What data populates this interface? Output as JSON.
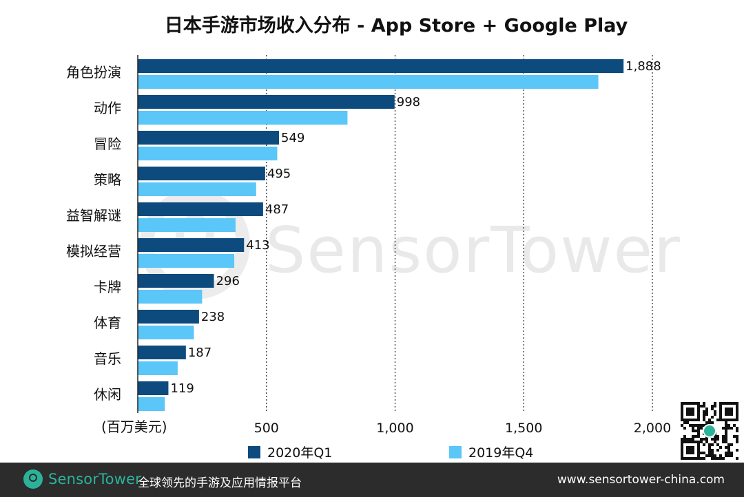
{
  "chart_data": {
    "type": "bar",
    "orientation": "horizontal",
    "title": "日本手游市场收入分布 - App Store + Google Play",
    "unit_label": "(百万美元)",
    "categories": [
      "角色扮演",
      "动作",
      "冒险",
      "策略",
      "益智解谜",
      "模拟经营",
      "卡牌",
      "体育",
      "音乐",
      "休闲"
    ],
    "series": [
      {
        "name": "2020年Q1",
        "color": "#0d4b7e",
        "values": [
          1888,
          998,
          549,
          495,
          487,
          413,
          296,
          238,
          187,
          119
        ],
        "labels": [
          "1,888",
          "998",
          "549",
          "495",
          "487",
          "413",
          "296",
          "238",
          "187",
          "119"
        ]
      },
      {
        "name": "2019年Q4",
        "color": "#5bc6f8",
        "values": [
          1790,
          815,
          542,
          460,
          380,
          375,
          250,
          218,
          155,
          105
        ]
      }
    ],
    "xlim": [
      0,
      2000
    ],
    "x_ticks": [
      500,
      1000,
      1500,
      2000
    ],
    "x_tick_labels": [
      "500",
      "1,000",
      "1,500",
      "2,000"
    ],
    "grid": "vertical-dotted",
    "legend_position": "bottom"
  },
  "watermark": "SensorTower",
  "footer": {
    "brand": "SensorTower",
    "tagline": "全球领先的手游及应用情报平台",
    "url": "www.sensortower-china.com"
  },
  "colors": {
    "footer_bg": "#2c2c2c",
    "brand_green": "#2bb39a"
  }
}
